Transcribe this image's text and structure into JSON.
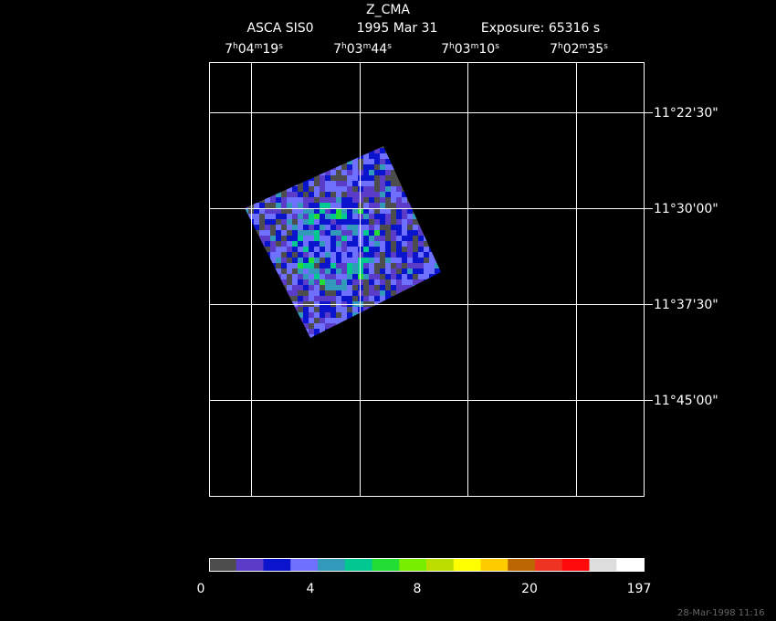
{
  "title": "Z_CMA",
  "subtitle": [
    "ASCA SIS0",
    "1995 Mar 31",
    "Exposure: 65316 s"
  ],
  "ra_labels": [
    {
      "parts": [
        "7",
        "h",
        "04",
        "m",
        "19",
        "s"
      ]
    },
    {
      "parts": [
        "7",
        "h",
        "03",
        "m",
        "44",
        "s"
      ]
    },
    {
      "parts": [
        "7",
        "h",
        "03",
        "m",
        "10",
        "s"
      ]
    },
    {
      "parts": [
        "7",
        "h",
        "02",
        "m",
        "35",
        "s"
      ]
    }
  ],
  "dec_labels": [
    "11°22'30\"",
    "11°30'00\"",
    "11°37'30\"",
    "11°45'00\""
  ],
  "colorbar": {
    "colors": [
      "#4d4d4d",
      "#5a3cc8",
      "#0a14cc",
      "#7070ff",
      "#3399bb",
      "#00c890",
      "#22dd33",
      "#77ee00",
      "#bbdd00",
      "#ffff00",
      "#ffcc00",
      "#bb6600",
      "#ee3322",
      "#ff0a0a",
      "#dddddd",
      "#ffffff"
    ],
    "labels": [
      "0",
      "4",
      "8",
      "20",
      "197"
    ]
  },
  "timestamp": "28-Mar-1998 11:16"
}
